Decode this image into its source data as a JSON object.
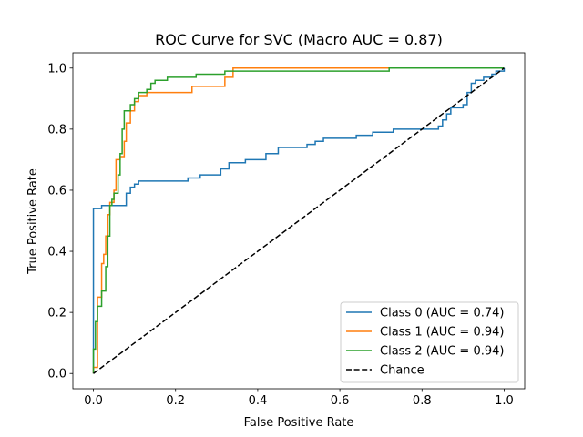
{
  "chart_data": {
    "type": "line",
    "title": "ROC Curve for SVC (Macro AUC = 0.87)",
    "xlabel": "False Positive Rate",
    "ylabel": "True Positive Rate",
    "xlim": [
      -0.05,
      1.05
    ],
    "ylim": [
      -0.05,
      1.05
    ],
    "xticks": [
      0.0,
      0.2,
      0.4,
      0.6,
      0.8,
      1.0
    ],
    "yticks": [
      0.0,
      0.2,
      0.4,
      0.6,
      0.8,
      1.0
    ],
    "xtick_labels": [
      "0.0",
      "0.2",
      "0.4",
      "0.6",
      "0.8",
      "1.0"
    ],
    "ytick_labels": [
      "0.0",
      "0.2",
      "0.4",
      "0.6",
      "0.8",
      "1.0"
    ],
    "grid": false,
    "legend_position": "lower-right",
    "series": [
      {
        "name": "Class 0 (AUC = 0.74)",
        "color": "#1f77b4",
        "style": "solid",
        "points": [
          [
            0,
            0
          ],
          [
            0,
            0.06
          ],
          [
            0,
            0.54
          ],
          [
            0.02,
            0.54
          ],
          [
            0.02,
            0.55
          ],
          [
            0.08,
            0.55
          ],
          [
            0.08,
            0.59
          ],
          [
            0.09,
            0.59
          ],
          [
            0.09,
            0.61
          ],
          [
            0.1,
            0.61
          ],
          [
            0.1,
            0.62
          ],
          [
            0.11,
            0.62
          ],
          [
            0.11,
            0.63
          ],
          [
            0.23,
            0.63
          ],
          [
            0.23,
            0.64
          ],
          [
            0.26,
            0.64
          ],
          [
            0.26,
            0.65
          ],
          [
            0.31,
            0.65
          ],
          [
            0.31,
            0.67
          ],
          [
            0.33,
            0.67
          ],
          [
            0.33,
            0.69
          ],
          [
            0.37,
            0.69
          ],
          [
            0.37,
            0.7
          ],
          [
            0.42,
            0.7
          ],
          [
            0.42,
            0.72
          ],
          [
            0.45,
            0.72
          ],
          [
            0.45,
            0.74
          ],
          [
            0.52,
            0.74
          ],
          [
            0.52,
            0.75
          ],
          [
            0.54,
            0.75
          ],
          [
            0.54,
            0.76
          ],
          [
            0.56,
            0.76
          ],
          [
            0.56,
            0.77
          ],
          [
            0.64,
            0.77
          ],
          [
            0.64,
            0.78
          ],
          [
            0.68,
            0.78
          ],
          [
            0.68,
            0.79
          ],
          [
            0.73,
            0.79
          ],
          [
            0.73,
            0.8
          ],
          [
            0.84,
            0.8
          ],
          [
            0.84,
            0.81
          ],
          [
            0.85,
            0.81
          ],
          [
            0.85,
            0.83
          ],
          [
            0.86,
            0.83
          ],
          [
            0.86,
            0.85
          ],
          [
            0.87,
            0.85
          ],
          [
            0.87,
            0.87
          ],
          [
            0.9,
            0.87
          ],
          [
            0.9,
            0.88
          ],
          [
            0.91,
            0.88
          ],
          [
            0.91,
            0.92
          ],
          [
            0.92,
            0.92
          ],
          [
            0.92,
            0.95
          ],
          [
            0.93,
            0.95
          ],
          [
            0.93,
            0.96
          ],
          [
            0.95,
            0.96
          ],
          [
            0.95,
            0.97
          ],
          [
            0.97,
            0.97
          ],
          [
            0.97,
            0.98
          ],
          [
            0.98,
            0.98
          ],
          [
            0.98,
            0.99
          ],
          [
            1.0,
            0.99
          ],
          [
            1.0,
            1.0
          ]
        ]
      },
      {
        "name": "Class 1 (AUC = 0.94)",
        "color": "#ff7f0e",
        "style": "solid",
        "points": [
          [
            0,
            0
          ],
          [
            0,
            0.02
          ],
          [
            0.01,
            0.02
          ],
          [
            0.01,
            0.25
          ],
          [
            0.02,
            0.25
          ],
          [
            0.02,
            0.36
          ],
          [
            0.025,
            0.36
          ],
          [
            0.025,
            0.39
          ],
          [
            0.03,
            0.39
          ],
          [
            0.03,
            0.45
          ],
          [
            0.035,
            0.45
          ],
          [
            0.035,
            0.52
          ],
          [
            0.04,
            0.52
          ],
          [
            0.04,
            0.56
          ],
          [
            0.05,
            0.56
          ],
          [
            0.05,
            0.6
          ],
          [
            0.055,
            0.6
          ],
          [
            0.055,
            0.7
          ],
          [
            0.065,
            0.7
          ],
          [
            0.065,
            0.71
          ],
          [
            0.075,
            0.71
          ],
          [
            0.075,
            0.76
          ],
          [
            0.08,
            0.76
          ],
          [
            0.08,
            0.82
          ],
          [
            0.09,
            0.82
          ],
          [
            0.09,
            0.86
          ],
          [
            0.1,
            0.86
          ],
          [
            0.1,
            0.89
          ],
          [
            0.11,
            0.89
          ],
          [
            0.11,
            0.91
          ],
          [
            0.13,
            0.91
          ],
          [
            0.13,
            0.92
          ],
          [
            0.24,
            0.92
          ],
          [
            0.24,
            0.94
          ],
          [
            0.32,
            0.94
          ],
          [
            0.32,
            0.97
          ],
          [
            0.34,
            0.97
          ],
          [
            0.34,
            1.0
          ],
          [
            0.72,
            1.0
          ]
        ]
      },
      {
        "name": "Class 2 (AUC = 0.94)",
        "color": "#2ca02c",
        "style": "solid",
        "points": [
          [
            0,
            0
          ],
          [
            0,
            0.08
          ],
          [
            0.005,
            0.08
          ],
          [
            0.005,
            0.17
          ],
          [
            0.01,
            0.17
          ],
          [
            0.01,
            0.22
          ],
          [
            0.02,
            0.22
          ],
          [
            0.02,
            0.27
          ],
          [
            0.03,
            0.27
          ],
          [
            0.03,
            0.35
          ],
          [
            0.035,
            0.35
          ],
          [
            0.035,
            0.45
          ],
          [
            0.04,
            0.45
          ],
          [
            0.04,
            0.55
          ],
          [
            0.045,
            0.55
          ],
          [
            0.045,
            0.57
          ],
          [
            0.05,
            0.57
          ],
          [
            0.05,
            0.59
          ],
          [
            0.06,
            0.59
          ],
          [
            0.06,
            0.65
          ],
          [
            0.065,
            0.65
          ],
          [
            0.065,
            0.72
          ],
          [
            0.07,
            0.72
          ],
          [
            0.07,
            0.8
          ],
          [
            0.075,
            0.8
          ],
          [
            0.075,
            0.86
          ],
          [
            0.09,
            0.86
          ],
          [
            0.09,
            0.88
          ],
          [
            0.1,
            0.88
          ],
          [
            0.1,
            0.9
          ],
          [
            0.11,
            0.9
          ],
          [
            0.11,
            0.92
          ],
          [
            0.13,
            0.92
          ],
          [
            0.13,
            0.93
          ],
          [
            0.14,
            0.93
          ],
          [
            0.14,
            0.95
          ],
          [
            0.15,
            0.95
          ],
          [
            0.15,
            0.96
          ],
          [
            0.18,
            0.96
          ],
          [
            0.18,
            0.97
          ],
          [
            0.25,
            0.97
          ],
          [
            0.25,
            0.98
          ],
          [
            0.32,
            0.98
          ],
          [
            0.32,
            0.99
          ],
          [
            0.72,
            0.99
          ],
          [
            0.72,
            1.0
          ],
          [
            1.0,
            1.0
          ]
        ]
      },
      {
        "name": "Chance",
        "color": "#000000",
        "style": "dashed",
        "points": [
          [
            0,
            0
          ],
          [
            1,
            1
          ]
        ]
      }
    ]
  }
}
